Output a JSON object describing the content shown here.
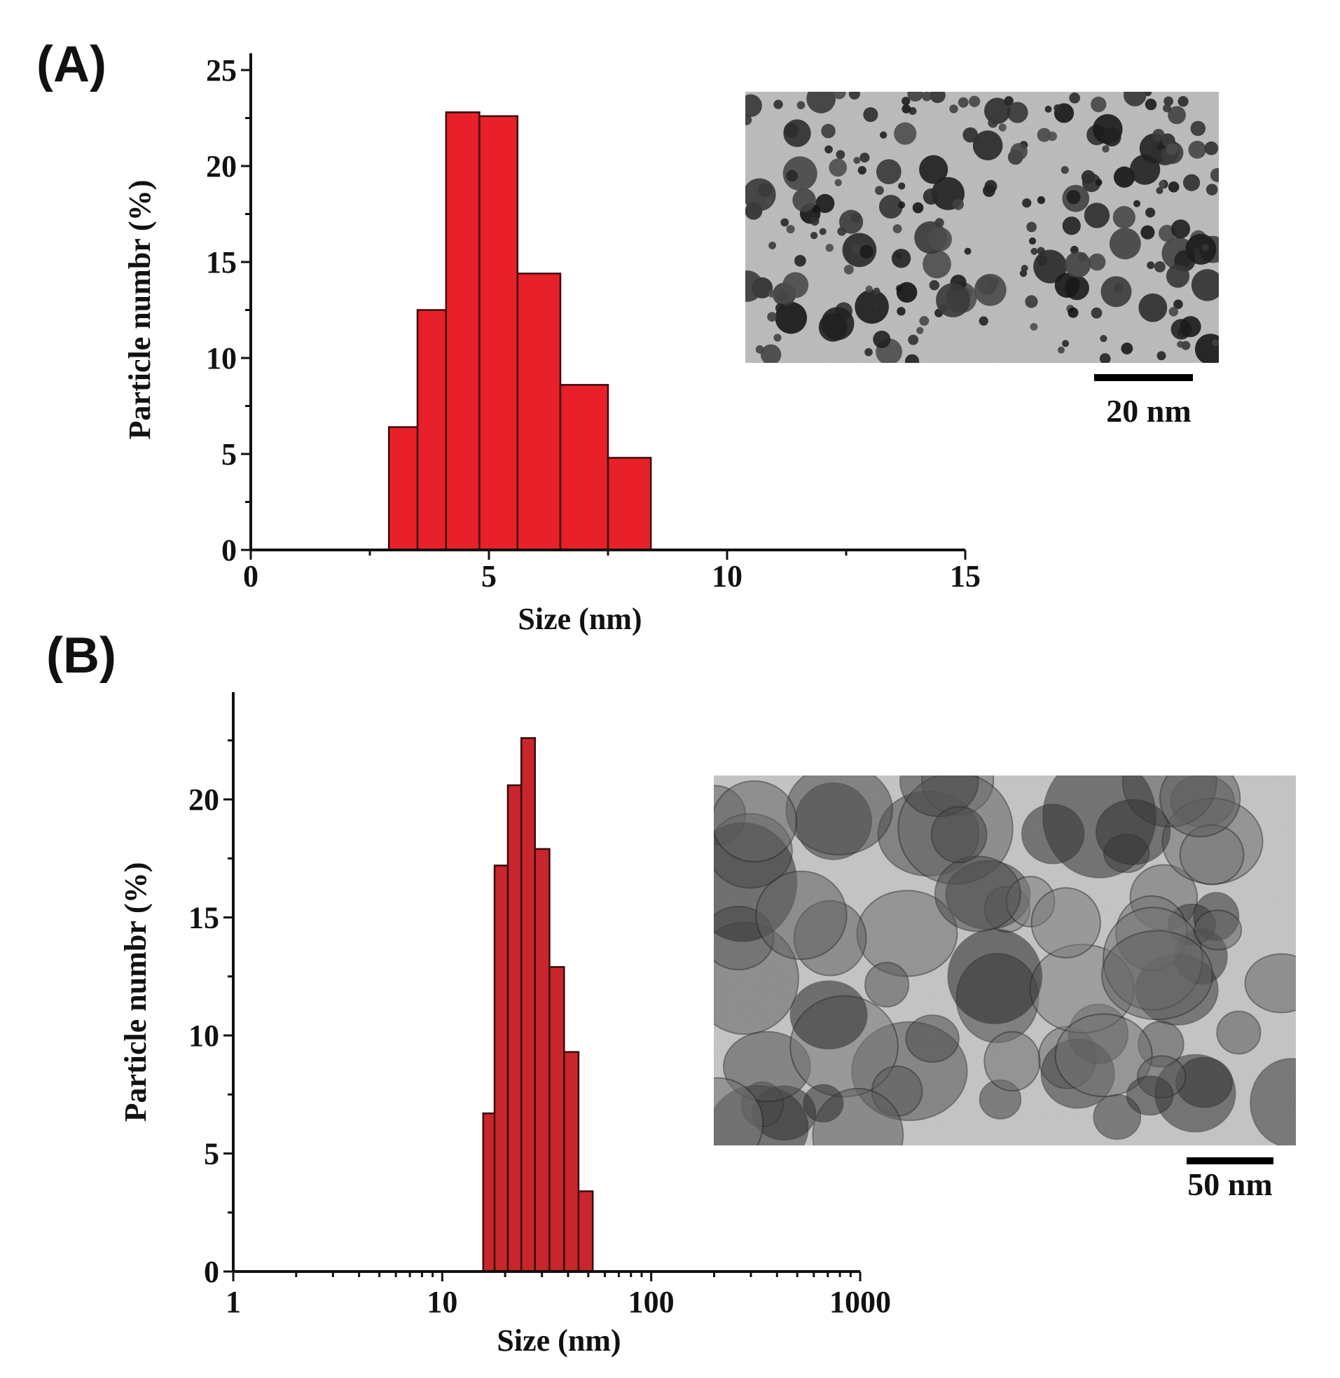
{
  "colors": {
    "bar_a": "#e8202a",
    "bar_b": "#c8262c",
    "edge": "#3a0a0a"
  },
  "icons": {
    "micrograph_a": "tem-micrograph-icon",
    "micrograph_b": "tem-micrograph-icon"
  },
  "chart_data": [
    {
      "type": "bar",
      "panel_label": "(A)",
      "xlabel": "Size (nm)",
      "ylabel": "Particle numbr (%)",
      "xlim": [
        0,
        15
      ],
      "ylim": [
        0,
        25
      ],
      "xticks": [
        "0",
        "5",
        "10",
        "15"
      ],
      "xtick_values": [
        0,
        5,
        10,
        15
      ],
      "yticks": [
        "0",
        "5",
        "10",
        "15",
        "20",
        "25"
      ],
      "ytick_values": [
        0,
        5,
        10,
        15,
        20,
        25
      ],
      "grid": false,
      "bins": [
        {
          "x0": 2.9,
          "x1": 3.5,
          "value": 6.4
        },
        {
          "x0": 3.5,
          "x1": 4.1,
          "value": 12.5
        },
        {
          "x0": 4.1,
          "x1": 4.8,
          "value": 22.8
        },
        {
          "x0": 4.8,
          "x1": 5.6,
          "value": 22.6
        },
        {
          "x0": 5.6,
          "x1": 6.5,
          "value": 14.4
        },
        {
          "x0": 6.5,
          "x1": 7.5,
          "value": 8.6
        },
        {
          "x0": 7.5,
          "x1": 8.4,
          "value": 4.8
        }
      ],
      "inset": {
        "scale_bar_label": "20 nm"
      }
    },
    {
      "type": "bar",
      "panel_label": "(B)",
      "xlabel": "Size (nm)",
      "ylabel": "Particle numbr (%)",
      "xscale": "log",
      "xlim": [
        1,
        1000
      ],
      "ylim": [
        0,
        23
      ],
      "xticks": [
        "1",
        "10",
        "100",
        "1000"
      ],
      "xtick_values": [
        1,
        10,
        100,
        1000
      ],
      "yticks": [
        "0",
        "5",
        "10",
        "15",
        "20"
      ],
      "ytick_values": [
        0,
        5,
        10,
        15,
        20
      ],
      "grid": false,
      "bins": [
        {
          "x0": 15.7,
          "x1": 17.8,
          "value": 6.7
        },
        {
          "x0": 17.8,
          "x1": 20.6,
          "value": 17.2
        },
        {
          "x0": 20.6,
          "x1": 23.9,
          "value": 20.6
        },
        {
          "x0": 23.9,
          "x1": 27.8,
          "value": 22.6
        },
        {
          "x0": 27.8,
          "x1": 32.6,
          "value": 17.9
        },
        {
          "x0": 32.6,
          "x1": 38.3,
          "value": 12.9
        },
        {
          "x0": 38.3,
          "x1": 44.9,
          "value": 9.3
        },
        {
          "x0": 44.9,
          "x1": 52.5,
          "value": 3.4
        }
      ],
      "inset": {
        "scale_bar_label": "50 nm"
      }
    }
  ]
}
